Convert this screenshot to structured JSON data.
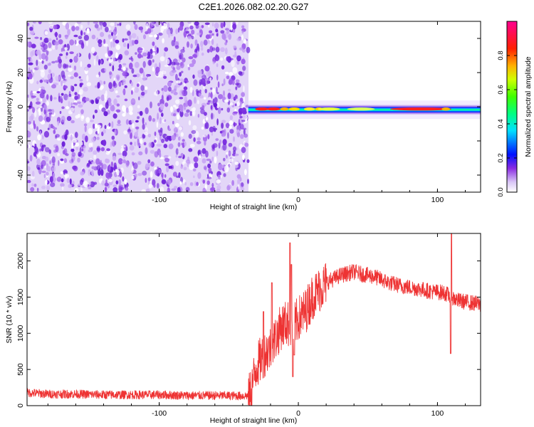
{
  "title": "C2E1.2026.082.02.20.G27",
  "chart_data": [
    {
      "type": "heatmap",
      "xlabel": "Height of straight line (km)",
      "ylabel": "Frequency (Hz)",
      "xlim": [
        -195,
        131
      ],
      "ylim": [
        -50,
        50
      ],
      "xticks": [
        -100,
        0,
        100
      ],
      "yticks": [
        -40,
        -20,
        0,
        20,
        40
      ],
      "colorbar": {
        "label": "Normalized spectral amplitude",
        "range": [
          0,
          1
        ],
        "ticks": [
          "0.0",
          "0.2",
          "0.4",
          "0.6",
          "0.8"
        ]
      },
      "regions": [
        {
          "x_range": [
            -195,
            -36
          ],
          "description_value": "broadband noise"
        },
        {
          "x_range": [
            -36,
            131
          ],
          "center_frequency_start": -2,
          "center_frequency_end": -1.5
        }
      ]
    },
    {
      "type": "line",
      "xlabel": "Height of straight line (km)",
      "ylabel": "SNR (10 * v/v)",
      "xlim": [
        -195,
        131
      ],
      "ylim": [
        0,
        2380
      ],
      "xticks": [
        -100,
        0,
        100
      ],
      "yticks": [
        0,
        500,
        1000,
        1500,
        2000
      ],
      "series": [
        {
          "name": "SNR",
          "color": "#ee3333",
          "x": [
            -195,
            -180,
            -160,
            -140,
            -120,
            -100,
            -80,
            -60,
            -40,
            -35,
            -30,
            -25,
            -20,
            -16,
            -12,
            -8,
            -5,
            0,
            5,
            10,
            15,
            20,
            30,
            40,
            45,
            55,
            65,
            75,
            85,
            95,
            105,
            110,
            115,
            125,
            131
          ],
          "y": [
            180,
            160,
            160,
            150,
            150,
            150,
            140,
            140,
            135,
            140,
            550,
            700,
            800,
            950,
            1100,
            1150,
            1050,
            1200,
            1300,
            1500,
            1600,
            1700,
            1800,
            1850,
            1820,
            1780,
            1700,
            1650,
            1620,
            1580,
            1560,
            1500,
            1450,
            1420,
            1400
          ]
        }
      ]
    }
  ]
}
